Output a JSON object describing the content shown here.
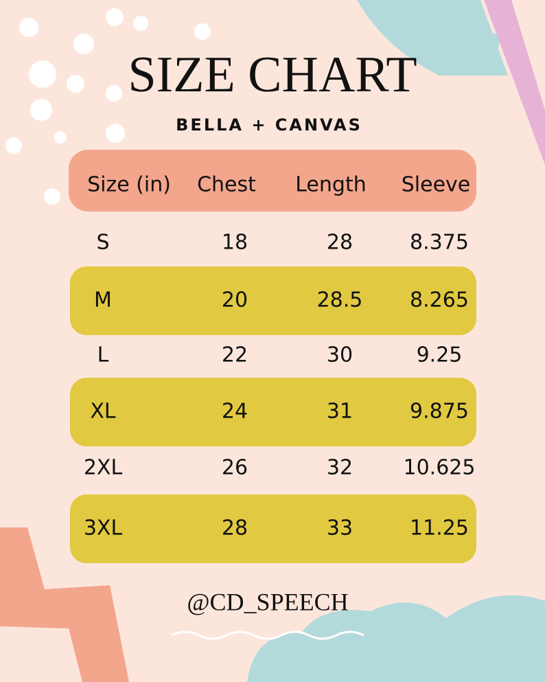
{
  "header": {
    "title": "SIZE CHART",
    "subtitle": "BELLA + CANVAS"
  },
  "table": {
    "columns": [
      "Size (in)",
      "Chest",
      "Length",
      "Sleeve"
    ],
    "rows": [
      [
        "S",
        "18",
        "28",
        "8.375"
      ],
      [
        "M",
        "20",
        "28.5",
        "8.265"
      ],
      [
        "L",
        "22",
        "30",
        "9.25"
      ],
      [
        "XL",
        "24",
        "31",
        "9.875"
      ],
      [
        "2XL",
        "26",
        "32",
        "10.625"
      ],
      [
        "3XL",
        "28",
        "33",
        "11.25"
      ]
    ]
  },
  "footer": {
    "handle": "@CD_SPEECH"
  }
}
